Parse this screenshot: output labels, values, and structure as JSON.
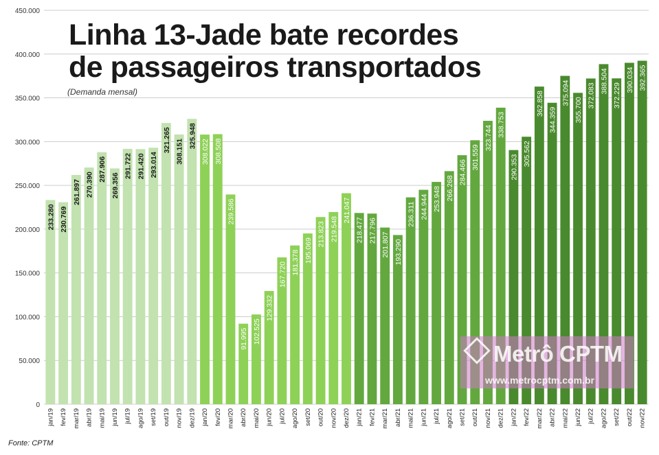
{
  "title_line1": "Linha 13-Jade bate recordes",
  "title_line2": "de passageiros transportados",
  "subtitle": "(Demanda mensal)",
  "source": "Fonte: CPTM",
  "watermark": {
    "logo": "Metrô CPTM",
    "url": "www.metrocptm.com.br"
  },
  "colors": {
    "y2019": "#c2e2b0",
    "y2020": "#8ed157",
    "y2021": "#63a83f",
    "y2022": "#4a8a2e",
    "label_dark": "#1a1a1a",
    "label_light": "#ffffff",
    "grid": "#cccccc"
  },
  "chart_data": {
    "type": "bar",
    "title": "Linha 13-Jade bate recordes de passageiros transportados",
    "subtitle": "(Demanda mensal)",
    "xlabel": "",
    "ylabel": "",
    "ylim": [
      0,
      450000
    ],
    "yticks": [
      "0",
      "50.000",
      "100.000",
      "150.000",
      "200.000",
      "250.000",
      "300.000",
      "350.000",
      "400.000",
      "450.000"
    ],
    "grid": true,
    "categories": [
      "jan/19",
      "fev/19",
      "mar/19",
      "abr/19",
      "mai/19",
      "jun/19",
      "jul/19",
      "ago/19",
      "set/19",
      "out/19",
      "nov/19",
      "dez/19",
      "jan/20",
      "fev/20",
      "mar/20",
      "abr/20",
      "mai/20",
      "jun/20",
      "jul/20",
      "ago/20",
      "set/20",
      "out/20",
      "nov/20",
      "dez/20",
      "jan/21",
      "fev/21",
      "mar/21",
      "abr/21",
      "mai/21",
      "jun/21",
      "jul/21",
      "ago/21",
      "set/21",
      "out/21",
      "nov/21",
      "dez/21",
      "jan/22",
      "fev/22",
      "mar/22",
      "abr/22",
      "mai/22",
      "jun/22",
      "jul/22",
      "ago/22",
      "set/22",
      "out/22",
      "nov/22"
    ],
    "values": [
      233280,
      230769,
      261897,
      270390,
      287906,
      269356,
      291722,
      291420,
      293014,
      321265,
      308151,
      325948,
      308022,
      308508,
      239586,
      91995,
      102525,
      129332,
      167720,
      181378,
      195069,
      213823,
      219548,
      241047,
      218477,
      217796,
      201807,
      193290,
      236311,
      244944,
      253948,
      266268,
      284466,
      301559,
      323744,
      338753,
      290353,
      305562,
      362858,
      344359,
      375094,
      355700,
      372083,
      388504,
      372229,
      390034,
      392365
    ],
    "value_labels": [
      "233.280",
      "230.769",
      "261.897",
      "270.390",
      "287.906",
      "269.356",
      "291.722",
      "291.420",
      "293.014",
      "321.265",
      "308.151",
      "325.948",
      "308.022",
      "308.508",
      "239.586",
      "91.995",
      "102.525",
      "129.332",
      "167.720",
      "181.378",
      "195.069",
      "213.823",
      "219.548",
      "241.047",
      "218.477",
      "217.796",
      "201.807",
      "193.290",
      "236.311",
      "244.944",
      "253.948",
      "266.268",
      "284.466",
      "301.559",
      "323.744",
      "338.753",
      "290.353",
      "305.562",
      "362.858",
      "344.359",
      "375.094",
      "355.700",
      "372.083",
      "388.504",
      "372.229",
      "390.034",
      "392.365"
    ]
  }
}
